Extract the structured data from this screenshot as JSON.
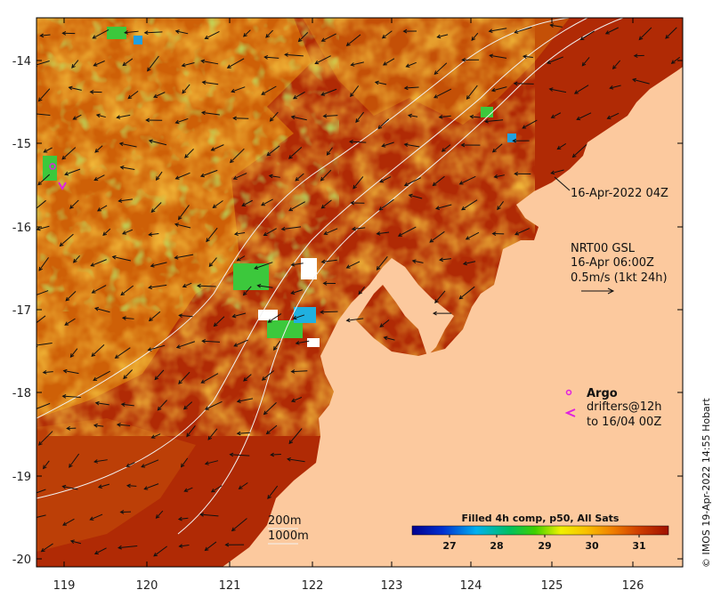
{
  "map": {
    "lon_ticks": [
      "119",
      "120",
      "121",
      "122",
      "123",
      "124",
      "125",
      "126"
    ],
    "lat_ticks": [
      "-14",
      "-15",
      "-16",
      "-17",
      "-18",
      "-19",
      "-20"
    ],
    "land_color": "#FCC99E",
    "sea_color": "#A51B04"
  },
  "annotations": {
    "snapshot_time": "16-Apr-2022 04Z",
    "currents_title": "NRT00 GSL",
    "currents_time": "16-Apr 06:00Z",
    "currents_scale": "0.5m/s (1kt 24h)",
    "argo_label": "Argo",
    "drifters_line1": "drifters@12h",
    "drifters_line2": "to 16/04 00Z",
    "argo_color": "#E020E0",
    "contour_200": "200m",
    "contour_1000": "1000m"
  },
  "colorbar": {
    "title": "Filled 4h comp, p50, All Sats",
    "ticks": [
      "27",
      "28",
      "29",
      "30",
      "31"
    ]
  },
  "credit": "© IMOS 19-Apr-2022 14:55 Hobart"
}
